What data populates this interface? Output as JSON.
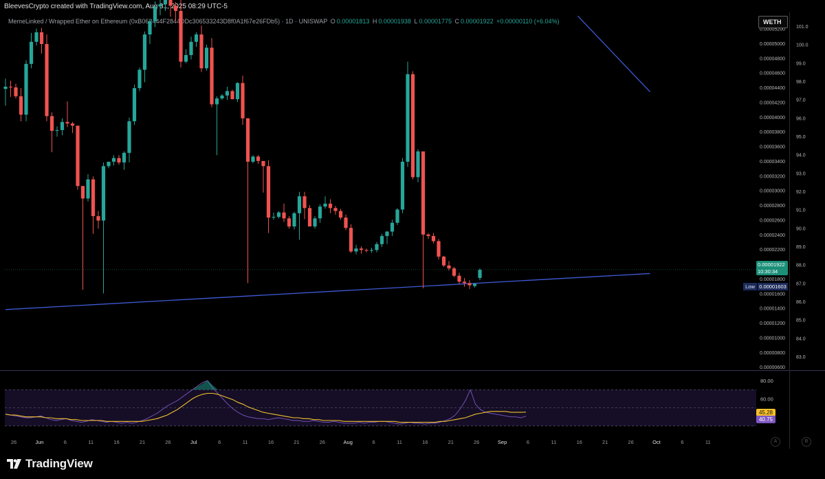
{
  "header": {
    "credit": "BleevesCrypto created with TradingView.com, Aug 31, 2025 08:29 UTC-5",
    "symbol": "MemeLinked / Wrapped Ether on Ethereum (0xB062444F2844DDc306533243D8f0A1f67e26FDb5) · 1D · UNISWAP",
    "open_label": "O",
    "open": "0.00001813",
    "high_label": "H",
    "high": "0.00001938",
    "low_label": "L",
    "low": "0.00001775",
    "close_label": "C",
    "close": "0.00001922",
    "change": "+0.00000110 (+6.04%)",
    "currency_button": "WETH"
  },
  "price_tag": {
    "price": "0.00001922",
    "countdown": "10:30:34"
  },
  "low_marker": {
    "label": "Low",
    "value": "0.00001603"
  },
  "oscillator_tags": {
    "yellow": "45.28",
    "purple": "40.75"
  },
  "footer": {
    "logo_text": "TradingView",
    "btn_a": "A",
    "btn_b": "B"
  },
  "colors": {
    "up": "#26a69a",
    "down": "#ef5350",
    "trendline": "#3f5bd6",
    "osc_line": "#7e57c2",
    "osc_signal": "#f2c12e",
    "band_fill": "#1a1130"
  },
  "chart_data": [
    {
      "type": "candlestick",
      "title": "MemeLinked / Wrapped Ether on Ethereum · 1D · UNISWAP",
      "y_axis_left_ticks": [
        "0.00000600",
        "0.00000800",
        "0.00001000",
        "0.00001200",
        "0.00001400",
        "0.00001600",
        "0.00001800",
        "0.00002000",
        "0.00002200",
        "0.00002400",
        "0.00002600",
        "0.00002800",
        "0.00003000",
        "0.00003200",
        "0.00003400",
        "0.00003600",
        "0.00003800",
        "0.00004000",
        "0.00004200",
        "0.00004400",
        "0.00004600",
        "0.00004800",
        "0.00005000",
        "0.00005200"
      ],
      "y_axis_right_ticks": [
        "83.0",
        "84.0",
        "85.0",
        "86.0",
        "87.0",
        "88.0",
        "89.0",
        "90.0",
        "91.0",
        "92.0",
        "93.0",
        "94.0",
        "95.0",
        "96.0",
        "97.0",
        "98.0",
        "99.0",
        "100.0",
        "101.0"
      ],
      "x_tick_labels": [
        "26",
        "Jun",
        "6",
        "11",
        "16",
        "21",
        "26",
        "Jul",
        "6",
        "11",
        "16",
        "21",
        "26",
        "Aug",
        "6",
        "11",
        "16",
        "21",
        "26",
        "Sep",
        "6",
        "11",
        "16",
        "21",
        "26",
        "Oct",
        "6",
        "11"
      ],
      "ylim": [
        5.55e-06,
        5.42e-05
      ],
      "candles": [
        [
          4.38e-05,
          4.52e-05,
          4.15e-05,
          4.41e-05
        ],
        [
          4.41e-05,
          4.49e-05,
          4.27e-05,
          4.4e-05
        ],
        [
          4.4e-05,
          4.45e-05,
          4.25e-05,
          4.28e-05
        ],
        [
          4.28e-05,
          4.39e-05,
          3.94e-05,
          4.03e-05
        ],
        [
          4.03e-05,
          4.77e-05,
          3.94e-05,
          4.72e-05
        ],
        [
          4.72e-05,
          5.14e-05,
          4.66e-05,
          5.02e-05
        ],
        [
          5.02e-05,
          5.2e-05,
          4.97e-05,
          5.15e-05
        ],
        [
          5.15e-05,
          5.21e-05,
          4.86e-05,
          4.99e-05
        ],
        [
          4.99e-05,
          5.12e-05,
          3.94e-05,
          4.01e-05
        ],
        [
          4.01e-05,
          4.06e-05,
          3.52e-05,
          3.81e-05
        ],
        [
          3.81e-05,
          3.87e-05,
          3.73e-05,
          3.82e-05
        ],
        [
          3.82e-05,
          3.98e-05,
          3.75e-05,
          3.93e-05
        ],
        [
          3.93e-05,
          4.21e-05,
          3.86e-05,
          3.91e-05
        ],
        [
          3.91e-05,
          3.93e-05,
          3.78e-05,
          3.88e-05
        ],
        [
          3.88e-05,
          3.88e-05,
          3.01e-05,
          3.06e-05
        ],
        [
          3.06e-05,
          3.06e-05,
          1.65e-05,
          2.89e-05
        ],
        [
          2.89e-05,
          3.22e-05,
          2.85e-05,
          3.15e-05
        ],
        [
          3.15e-05,
          3.19e-05,
          2.41e-05,
          2.65e-05
        ],
        [
          2.65e-05,
          2.72e-05,
          2.48e-05,
          2.59e-05
        ],
        [
          2.59e-05,
          3.38e-05,
          1.6e-05,
          3.33e-05
        ],
        [
          3.33e-05,
          3.39e-05,
          3.3e-05,
          3.39e-05
        ],
        [
          3.39e-05,
          3.48e-05,
          3.34e-05,
          3.44e-05
        ],
        [
          3.44e-05,
          3.48e-05,
          3.35e-05,
          3.38e-05
        ],
        [
          3.38e-05,
          3.53e-05,
          3.28e-05,
          3.51e-05
        ],
        [
          3.51e-05,
          3.99e-05,
          3.38e-05,
          3.94e-05
        ],
        [
          3.94e-05,
          4.44e-05,
          3.89e-05,
          4.39e-05
        ],
        [
          4.39e-05,
          4.67e-05,
          4.35e-05,
          4.64e-05
        ],
        [
          4.64e-05,
          5.16e-05,
          4.47e-05,
          5.12e-05
        ],
        [
          5.12e-05,
          5.33e-05,
          4.99e-05,
          5.3e-05
        ],
        [
          5.3e-05,
          5.57e-05,
          5.22e-05,
          5.5e-05
        ],
        [
          5.5e-05,
          5.63e-05,
          5.38e-05,
          5.53e-05
        ],
        [
          5.53e-05,
          5.67e-05,
          5.44e-05,
          5.59e-05
        ],
        [
          5.59e-05,
          5.62e-05,
          5.36e-05,
          5.51e-05
        ],
        [
          5.51e-05,
          5.56e-05,
          5.29e-05,
          5.44e-05
        ],
        [
          5.44e-05,
          5.63e-05,
          4.67e-05,
          4.75e-05
        ],
        [
          4.75e-05,
          4.92e-05,
          4.73e-05,
          4.84e-05
        ],
        [
          4.84e-05,
          5.09e-05,
          4.78e-05,
          5.02e-05
        ],
        [
          5.02e-05,
          5.15e-05,
          4.95e-05,
          5.12e-05
        ],
        [
          5.12e-05,
          5.24e-05,
          4.61e-05,
          4.66e-05
        ],
        [
          4.66e-05,
          4.98e-05,
          4.63e-05,
          4.94e-05
        ],
        [
          4.94e-05,
          5.07e-05,
          4.13e-05,
          4.17e-05
        ],
        [
          4.17e-05,
          4.28e-05,
          3.48e-05,
          4.25e-05
        ],
        [
          4.25e-05,
          4.31e-05,
          4.23e-05,
          4.29e-05
        ],
        [
          4.29e-05,
          4.41e-05,
          4.23e-05,
          4.35e-05
        ],
        [
          4.35e-05,
          4.37e-05,
          4.24e-05,
          4.24e-05
        ],
        [
          4.24e-05,
          4.47e-05,
          4.2e-05,
          4.46e-05
        ],
        [
          4.46e-05,
          4.56e-05,
          3.89e-05,
          3.98e-05
        ],
        [
          3.98e-05,
          3.98e-05,
          1.74e-05,
          3.39e-05
        ],
        [
          3.39e-05,
          3.48e-05,
          3.37e-05,
          3.46e-05
        ],
        [
          3.46e-05,
          3.48e-05,
          3.36e-05,
          3.4e-05
        ],
        [
          3.4e-05,
          3.4e-05,
          2.97e-05,
          3.33e-05
        ],
        [
          3.33e-05,
          3.41e-05,
          2.42e-05,
          2.63e-05
        ],
        [
          2.63e-05,
          2.7e-05,
          2.6e-05,
          2.64e-05
        ],
        [
          2.64e-05,
          2.72e-05,
          2.62e-05,
          2.7e-05
        ],
        [
          2.7e-05,
          2.82e-05,
          2.57e-05,
          2.62e-05
        ],
        [
          2.62e-05,
          2.65e-05,
          2.48e-05,
          2.51e-05
        ],
        [
          2.51e-05,
          2.71e-05,
          2.47e-05,
          2.69e-05
        ],
        [
          2.69e-05,
          2.98e-05,
          2.33e-05,
          2.92e-05
        ],
        [
          2.92e-05,
          2.98e-05,
          2.61e-05,
          2.76e-05
        ],
        [
          2.76e-05,
          2.8e-05,
          2.52e-05,
          2.51e-05
        ],
        [
          2.51e-05,
          2.65e-05,
          2.48e-05,
          2.62e-05
        ],
        [
          2.62e-05,
          2.81e-05,
          2.56e-05,
          2.78e-05
        ],
        [
          2.78e-05,
          2.92e-05,
          2.75e-05,
          2.82e-05
        ],
        [
          2.82e-05,
          2.88e-05,
          2.69e-05,
          2.76e-05
        ],
        [
          2.76e-05,
          2.79e-05,
          2.67e-05,
          2.72e-05
        ],
        [
          2.72e-05,
          2.75e-05,
          2.6e-05,
          2.63e-05
        ],
        [
          2.63e-05,
          2.67e-05,
          2.46e-05,
          2.49e-05
        ],
        [
          2.49e-05,
          2.54e-05,
          2.15e-05,
          2.17e-05
        ],
        [
          2.17e-05,
          2.26e-05,
          2.13e-05,
          2.21e-05
        ],
        [
          2.21e-05,
          2.24e-05,
          2.14e-05,
          2.19e-05
        ],
        [
          2.19e-05,
          2.21e-05,
          2.16e-05,
          2.18e-05
        ],
        [
          2.18e-05,
          2.22e-05,
          2.15e-05,
          2.19e-05
        ],
        [
          2.19e-05,
          2.3e-05,
          2.16e-05,
          2.27e-05
        ],
        [
          2.27e-05,
          2.41e-05,
          2.23e-05,
          2.38e-05
        ],
        [
          2.38e-05,
          2.45e-05,
          2.27e-05,
          2.44e-05
        ],
        [
          2.44e-05,
          2.6e-05,
          2.38e-05,
          2.56e-05
        ],
        [
          2.56e-05,
          2.76e-05,
          2.53e-05,
          2.74e-05
        ],
        [
          2.74e-05,
          3.44e-05,
          2.69e-05,
          3.39e-05
        ],
        [
          3.39e-05,
          4.75e-05,
          3.32e-05,
          4.58e-05
        ],
        [
          4.58e-05,
          4.62e-05,
          3.15e-05,
          3.18e-05
        ],
        [
          3.18e-05,
          3.56e-05,
          3.11e-05,
          3.53e-05
        ],
        [
          3.53e-05,
          3.53e-05,
          1.67e-05,
          2.4e-05
        ],
        [
          2.4e-05,
          2.42e-05,
          2.34e-05,
          2.38e-05
        ],
        [
          2.38e-05,
          2.42e-05,
          2.28e-05,
          2.31e-05
        ],
        [
          2.31e-05,
          2.34e-05,
          2.06e-05,
          2.1e-05
        ],
        [
          2.1e-05,
          2.11e-05,
          1.96e-05,
          1.98e-05
        ],
        [
          1.98e-05,
          2.04e-05,
          1.91e-05,
          1.94e-05
        ],
        [
          1.94e-05,
          1.96e-05,
          1.82e-05,
          1.84e-05
        ],
        [
          1.84e-05,
          1.88e-05,
          1.73e-05,
          1.76e-05
        ],
        [
          1.76e-05,
          1.81e-05,
          1.69e-05,
          1.74e-05
        ],
        [
          1.74e-05,
          1.78e-05,
          1.66e-05,
          1.71e-05
        ],
        [
          1.7e-05,
          1.74e-05,
          1.68e-05,
          1.73e-05
        ],
        [
          1.81e-05,
          1.94e-05,
          1.78e-05,
          1.92e-05
        ]
      ],
      "trendlines": [
        {
          "name": "support",
          "color": "#3f5bd6",
          "from": [
            0,
            1.38e-05
          ],
          "to": [
            125,
            1.87e-05
          ]
        },
        {
          "name": "descending",
          "color": "#3f5bd6",
          "from": [
            111,
            5.37e-05
          ],
          "to": [
            125,
            4.34e-05
          ]
        }
      ],
      "last_price": 1.922e-05,
      "low": 1.603e-05
    },
    {
      "type": "line",
      "title": "oscillator",
      "y_axis_ticks": [
        "60.00",
        "80.00"
      ],
      "ylim": [
        20,
        90
      ],
      "band": [
        30,
        70
      ],
      "series": [
        {
          "color": "#7e57c2",
          "values": [
            43,
            42,
            41,
            40,
            39,
            39,
            40,
            41,
            39,
            37,
            36,
            37,
            38,
            36,
            35,
            34,
            35,
            37,
            36,
            35,
            34,
            35,
            34,
            33,
            34,
            33,
            34,
            36,
            38,
            41,
            44,
            48,
            52,
            55,
            58,
            62,
            66,
            70,
            74,
            78,
            80,
            72,
            66,
            60,
            54,
            49,
            45,
            42,
            40,
            39,
            38,
            38,
            37,
            38,
            39,
            38,
            37,
            36,
            36,
            35,
            35,
            36,
            35,
            34,
            34,
            35,
            34,
            33,
            33,
            33,
            34,
            33,
            34,
            34,
            35,
            35,
            34,
            33,
            32,
            33,
            34,
            33,
            33,
            32,
            33,
            33,
            34,
            36,
            38,
            42,
            49,
            58,
            70,
            54,
            48,
            45,
            44,
            43,
            42,
            41,
            40,
            40,
            39,
            40.75
          ]
        },
        {
          "color": "#f2c12e",
          "values": [
            43,
            42,
            42,
            41,
            40,
            40,
            40,
            40,
            39,
            39,
            38,
            38,
            38,
            37,
            37,
            36,
            36,
            36,
            36,
            36,
            35,
            35,
            35,
            35,
            35,
            35,
            35,
            35,
            36,
            37,
            38,
            40,
            42,
            45,
            48,
            52,
            56,
            60,
            63,
            65,
            66,
            66,
            65,
            63,
            61,
            59,
            56,
            54,
            51,
            49,
            47,
            45,
            44,
            43,
            42,
            41,
            40,
            39,
            39,
            38,
            38,
            37,
            37,
            36,
            36,
            36,
            36,
            35,
            35,
            35,
            35,
            35,
            35,
            35,
            35,
            35,
            35,
            35,
            34,
            34,
            34,
            34,
            34,
            34,
            34,
            34,
            35,
            35,
            36,
            37,
            38,
            39,
            41,
            43,
            44,
            45,
            46,
            46,
            46,
            46,
            45,
            45,
            45,
            45.28
          ]
        }
      ]
    }
  ]
}
